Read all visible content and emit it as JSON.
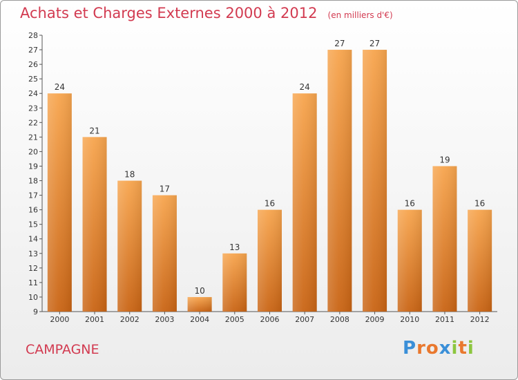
{
  "chart_data": {
    "type": "bar",
    "title": "Achats et Charges Externes 2000 à 2012",
    "subtitle": "(en milliers d'€)",
    "categories": [
      "2000",
      "2001",
      "2002",
      "2003",
      "2004",
      "2005",
      "2006",
      "2007",
      "2008",
      "2009",
      "2010",
      "2011",
      "2012"
    ],
    "values": [
      24,
      21,
      18,
      17,
      10,
      13,
      16,
      24,
      27,
      27,
      16,
      19,
      16
    ],
    "ylim": [
      9,
      28
    ],
    "yticks": [
      9,
      10,
      11,
      12,
      13,
      14,
      15,
      16,
      17,
      18,
      19,
      20,
      21,
      22,
      23,
      24,
      25,
      26,
      27,
      28
    ],
    "grid": false,
    "legend": "none",
    "bar_color_top": "#f7a54e",
    "bar_color_bottom": "#c96414",
    "title_color": "#d23a50"
  },
  "location_label": "CAMPAGNE",
  "logo": {
    "text": "Proxiti",
    "letter_colors": [
      "#3a8fd8",
      "#e9782e",
      "#e9782e",
      "#3a8fd8",
      "#8cc63f",
      "#e9782e",
      "#8cc63f"
    ]
  }
}
